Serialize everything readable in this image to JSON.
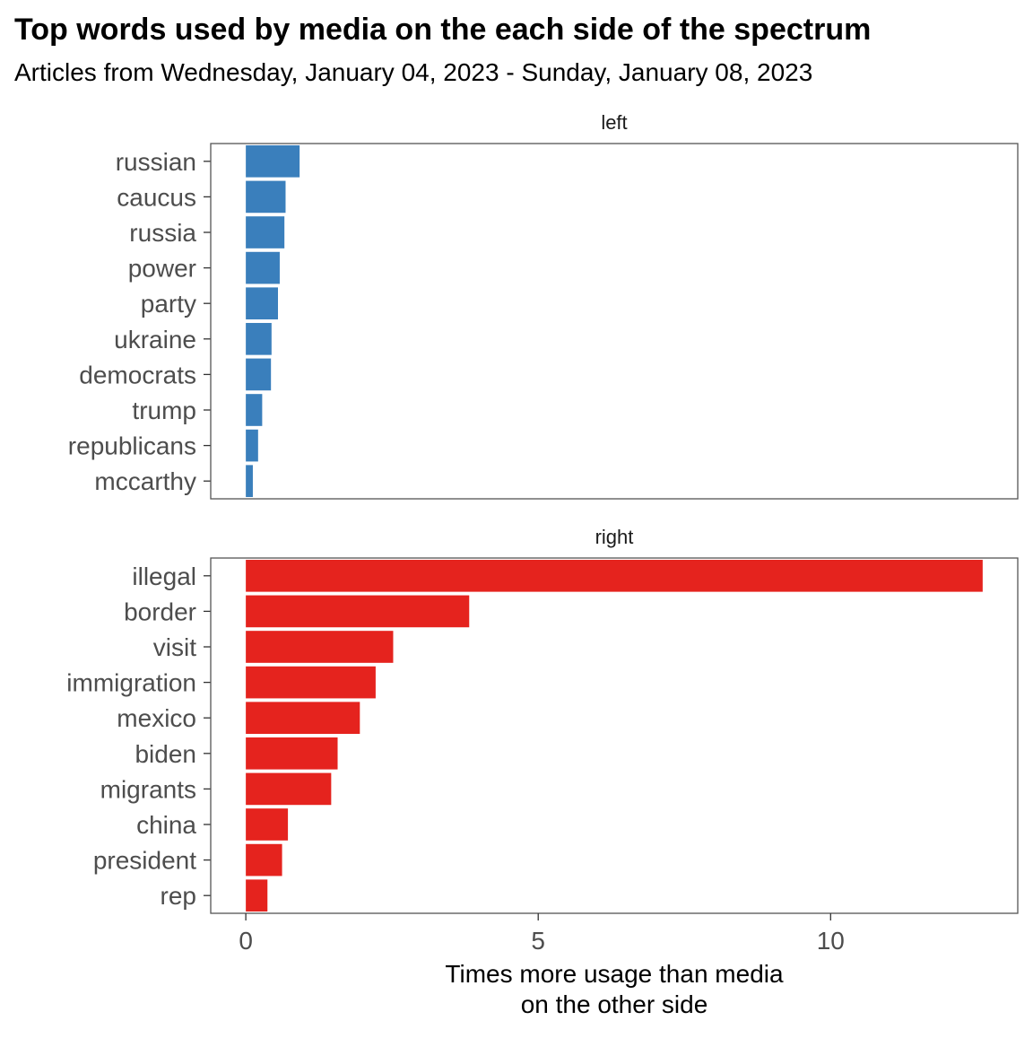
{
  "chart_data": {
    "type": "bar",
    "orientation": "horizontal",
    "title": "Top words used by media on the each side of the spectrum",
    "subtitle": "Articles from Wednesday, January 04, 2023 - Sunday, January 08, 2023",
    "xlabel_line1": "Times more usage than media",
    "xlabel_line2": "on the other side",
    "xlim": [
      -0.6,
      13.2
    ],
    "xticks": [
      0,
      5,
      10
    ],
    "shared_x_axis": true,
    "grid": false,
    "facets": [
      {
        "name": "left",
        "color": "#3A7FBC",
        "categories": [
          "russian",
          "caucus",
          "russia",
          "power",
          "party",
          "ukraine",
          "democrats",
          "trump",
          "republicans",
          "mccarthy"
        ],
        "values": [
          0.92,
          0.68,
          0.66,
          0.58,
          0.55,
          0.44,
          0.43,
          0.28,
          0.21,
          0.12
        ]
      },
      {
        "name": "right",
        "color": "#E5231E",
        "categories": [
          "illegal",
          "border",
          "visit",
          "immigration",
          "mexico",
          "biden",
          "migrants",
          "china",
          "president",
          "rep"
        ],
        "values": [
          12.6,
          3.82,
          2.52,
          2.22,
          1.95,
          1.57,
          1.46,
          0.72,
          0.62,
          0.37
        ]
      }
    ]
  }
}
